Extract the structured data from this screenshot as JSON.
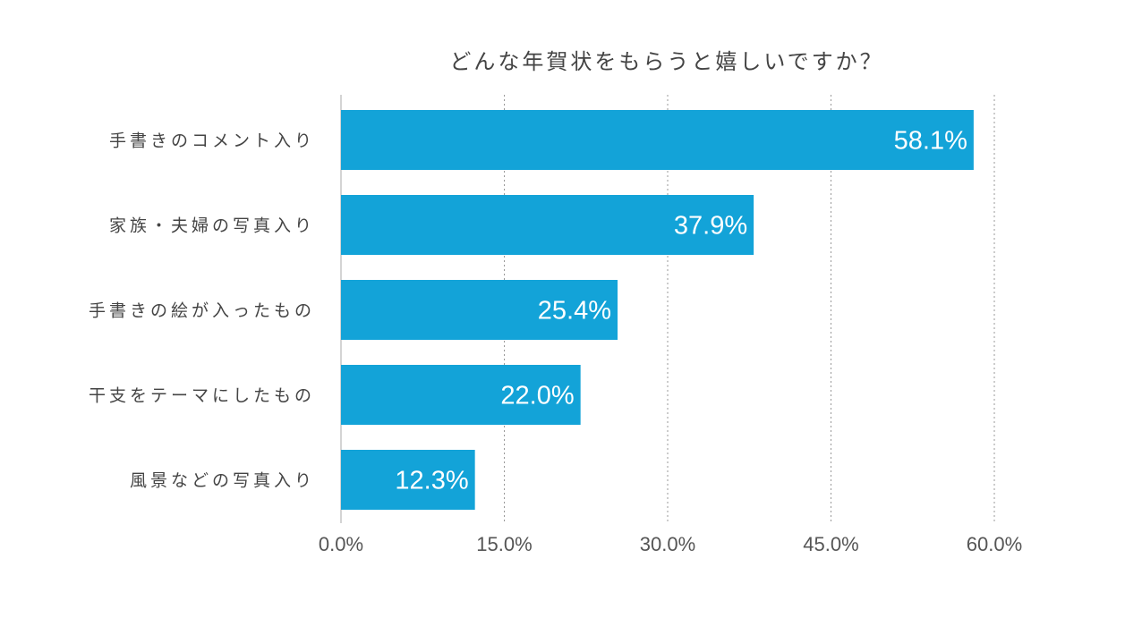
{
  "chart_data": {
    "type": "bar",
    "orientation": "horizontal",
    "title": "どんな年賀状をもらうと嬉しいですか？",
    "categories": [
      "手書きのコメント入り",
      "家族・夫婦の写真入り",
      "手書きの絵が入ったもの",
      "干支をテーマにしたもの",
      "風景などの写真入り"
    ],
    "values": [
      58.1,
      37.9,
      25.4,
      22.0,
      12.3
    ],
    "data_labels": [
      "58.1%",
      "37.9%",
      "25.4%",
      "22.0%",
      "12.3%"
    ],
    "xlim": [
      0,
      60
    ],
    "xticks": [
      0,
      15,
      30,
      45,
      60
    ],
    "xtick_labels": [
      "0.0%",
      "15.0%",
      "30.0%",
      "45.0%",
      "60.0%"
    ],
    "xlabel": "",
    "ylabel": "",
    "grid": "vertical dotted",
    "bar_color": "#13a3d8"
  }
}
